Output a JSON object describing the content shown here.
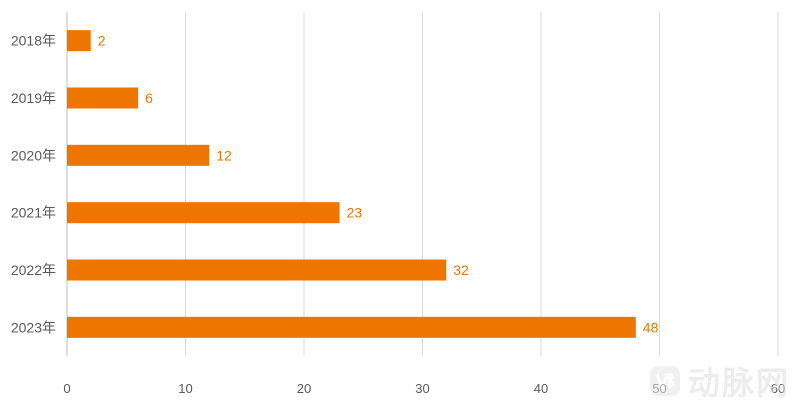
{
  "chart_data": {
    "type": "bar",
    "orientation": "horizontal",
    "categories": [
      "2018年",
      "2019年",
      "2020年",
      "2021年",
      "2022年",
      "2023年"
    ],
    "values": [
      2,
      6,
      12,
      23,
      32,
      48
    ],
    "xlim": [
      0,
      60
    ],
    "xticks": [
      "0",
      "10",
      "20",
      "30",
      "40",
      "50",
      "60"
    ],
    "grid": "vertical",
    "bar_color": "#ee7600",
    "label_color": "#ee7600"
  },
  "watermark": {
    "text": "动脉网",
    "logo": "vb-logo-icon"
  }
}
